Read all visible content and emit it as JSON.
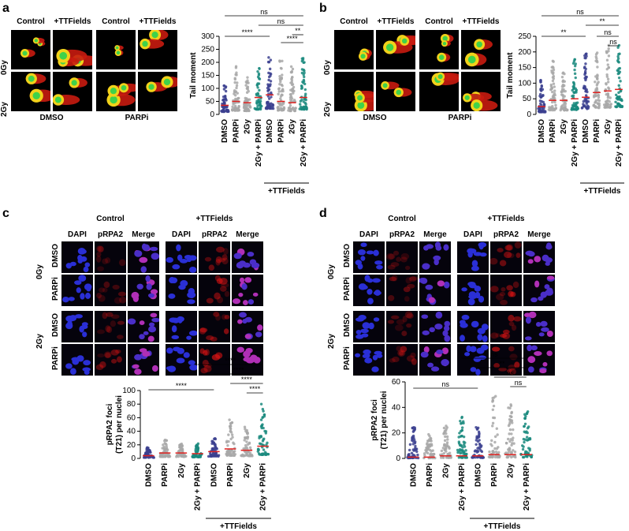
{
  "panels": {
    "a": {
      "letter": "a",
      "col_labels": [
        "Control",
        "+TTFields",
        "Control",
        "+TTFields"
      ],
      "row_labels": [
        "0Gy",
        "2Gy"
      ],
      "group_labels": [
        "DMSO",
        "PARPi"
      ],
      "chart": {
        "ylabel": "Tail moment",
        "ylim": [
          0,
          300
        ],
        "yticks": [
          "0",
          "50",
          "100",
          "150",
          "200",
          "250",
          "300"
        ],
        "categories": [
          "DMSO",
          "PARPi",
          "2Gy",
          "2Gy + PARPi",
          "DMSO",
          "PARPi",
          "2Gy",
          "2Gy + PARPi"
        ],
        "group_label": "+TTFields",
        "sig": [
          "****",
          "ns",
          "ns",
          "**",
          "****"
        ]
      }
    },
    "b": {
      "letter": "b",
      "col_labels": [
        "Control",
        "+TTFields",
        "Control",
        "+TTFields"
      ],
      "row_labels": [
        "0Gy",
        "2Gy"
      ],
      "group_labels": [
        "DMSO",
        "PARPi"
      ],
      "chart": {
        "ylabel": "Tail moment",
        "ylim": [
          0,
          250
        ],
        "yticks": [
          "0",
          "50",
          "100",
          "150",
          "200",
          "250"
        ],
        "categories": [
          "DMSO",
          "PARPi",
          "2Gy",
          "2Gy + PARPi",
          "DMSO",
          "PARPi",
          "2Gy",
          "2Gy + PARPi"
        ],
        "group_label": "+TTFields",
        "sig": [
          "**",
          "ns",
          "**",
          "ns",
          "ns"
        ]
      }
    },
    "c": {
      "letter": "c",
      "header_groups": [
        "Control",
        "+TTFields"
      ],
      "col_labels": [
        "DAPI",
        "pRPA2",
        "Merge",
        "DAPI",
        "pRPA2",
        "Merge"
      ],
      "dose_labels": [
        "0Gy",
        "2Gy"
      ],
      "drug_labels": [
        "DMSO",
        "PARPi",
        "DMSO",
        "PARPi"
      ],
      "chart": {
        "ylabel": "pRPA2 foci (T21) per nuclei",
        "ylim": [
          0,
          100
        ],
        "yticks": [
          "0",
          "20",
          "40",
          "60",
          "80",
          "100"
        ],
        "categories": [
          "DMSO",
          "PARPi",
          "2Gy",
          "2Gy + PARPi",
          "DMSO",
          "PARPi",
          "2Gy",
          "2Gy + PARPi"
        ],
        "group_label": "+TTFields",
        "sig": [
          "****",
          "****",
          "****",
          "****",
          "****"
        ]
      }
    },
    "d": {
      "letter": "d",
      "header_groups": [
        "Control",
        "+TTFields"
      ],
      "col_labels": [
        "DAPI",
        "pRPA2",
        "Merge",
        "DAPI",
        "pRPA2",
        "Merge"
      ],
      "dose_labels": [
        "0Gy",
        "2Gy"
      ],
      "drug_labels": [
        "DMSO",
        "PARPi",
        "DMSO",
        "PARPi"
      ],
      "chart": {
        "ylabel": "pRPA2 foci (T21) per nuclei",
        "ylim": [
          0,
          60
        ],
        "yticks": [
          "0",
          "20",
          "40",
          "60"
        ],
        "categories": [
          "DMSO",
          "PARPi",
          "2Gy",
          "2Gy + PARPi",
          "DMSO",
          "PARPi",
          "2Gy",
          "2Gy + PARPi"
        ],
        "group_label": "+TTFields",
        "sig": [
          "ns",
          "ns",
          "**",
          "ns",
          "ns"
        ]
      }
    }
  },
  "chart_data": [
    {
      "type": "scatter",
      "panel": "a",
      "ylabel": "Tail moment",
      "ylim": [
        0,
        300
      ],
      "categories": [
        "DMSO",
        "PARPi",
        "2Gy",
        "2Gy + PARPi",
        "DMSO",
        "PARPi",
        "2Gy",
        "2Gy + PARPi"
      ],
      "means": [
        35,
        50,
        45,
        65,
        75,
        50,
        45,
        65
      ],
      "spread": [
        110,
        180,
        140,
        170,
        200,
        200,
        180,
        200
      ],
      "colors": [
        "#3b3f8f",
        "#a8a8a8",
        "#a8a8a8",
        "#1a8a7e",
        "#3b3f8f",
        "#a8a8a8",
        "#a8a8a8",
        "#1a8a7e"
      ]
    },
    {
      "type": "scatter",
      "panel": "b",
      "ylabel": "Tail moment",
      "ylim": [
        0,
        250
      ],
      "categories": [
        "DMSO",
        "PARPi",
        "2Gy",
        "2Gy + PARPi",
        "DMSO",
        "PARPi",
        "2Gy",
        "2Gy + PARPi"
      ],
      "means": [
        25,
        45,
        45,
        50,
        55,
        70,
        75,
        80
      ],
      "spread": [
        105,
        160,
        150,
        165,
        180,
        180,
        200,
        210
      ],
      "colors": [
        "#3b3f8f",
        "#a8a8a8",
        "#a8a8a8",
        "#1a8a7e",
        "#3b3f8f",
        "#a8a8a8",
        "#a8a8a8",
        "#1a8a7e"
      ]
    },
    {
      "type": "scatter",
      "panel": "c",
      "ylabel": "pRPA2 foci (T21) per nuclei",
      "ylim": [
        0,
        100
      ],
      "categories": [
        "DMSO",
        "PARPi",
        "2Gy",
        "2Gy + PARPi",
        "DMSO",
        "PARPi",
        "2Gy",
        "2Gy + PARPi"
      ],
      "means": [
        4,
        8,
        8,
        7,
        10,
        14,
        12,
        18
      ],
      "spread": [
        15,
        25,
        20,
        20,
        28,
        60,
        45,
        80
      ],
      "colors": [
        "#3b3f8f",
        "#a8a8a8",
        "#a8a8a8",
        "#1a8a7e",
        "#3b3f8f",
        "#a8a8a8",
        "#a8a8a8",
        "#1a8a7e"
      ]
    },
    {
      "type": "scatter",
      "panel": "d",
      "ylabel": "pRPA2 foci (T21) per nuclei",
      "ylim": [
        0,
        60
      ],
      "categories": [
        "DMSO",
        "PARPi",
        "2Gy",
        "2Gy + PARPi",
        "DMSO",
        "PARPi",
        "2Gy",
        "2Gy + PARPi"
      ],
      "means": [
        1,
        1,
        2,
        2,
        2,
        3,
        3,
        3
      ],
      "spread": [
        24,
        20,
        25,
        32,
        24,
        50,
        42,
        44
      ],
      "colors": [
        "#3b3f8f",
        "#a8a8a8",
        "#a8a8a8",
        "#1a8a7e",
        "#3b3f8f",
        "#a8a8a8",
        "#a8a8a8",
        "#1a8a7e"
      ]
    }
  ]
}
